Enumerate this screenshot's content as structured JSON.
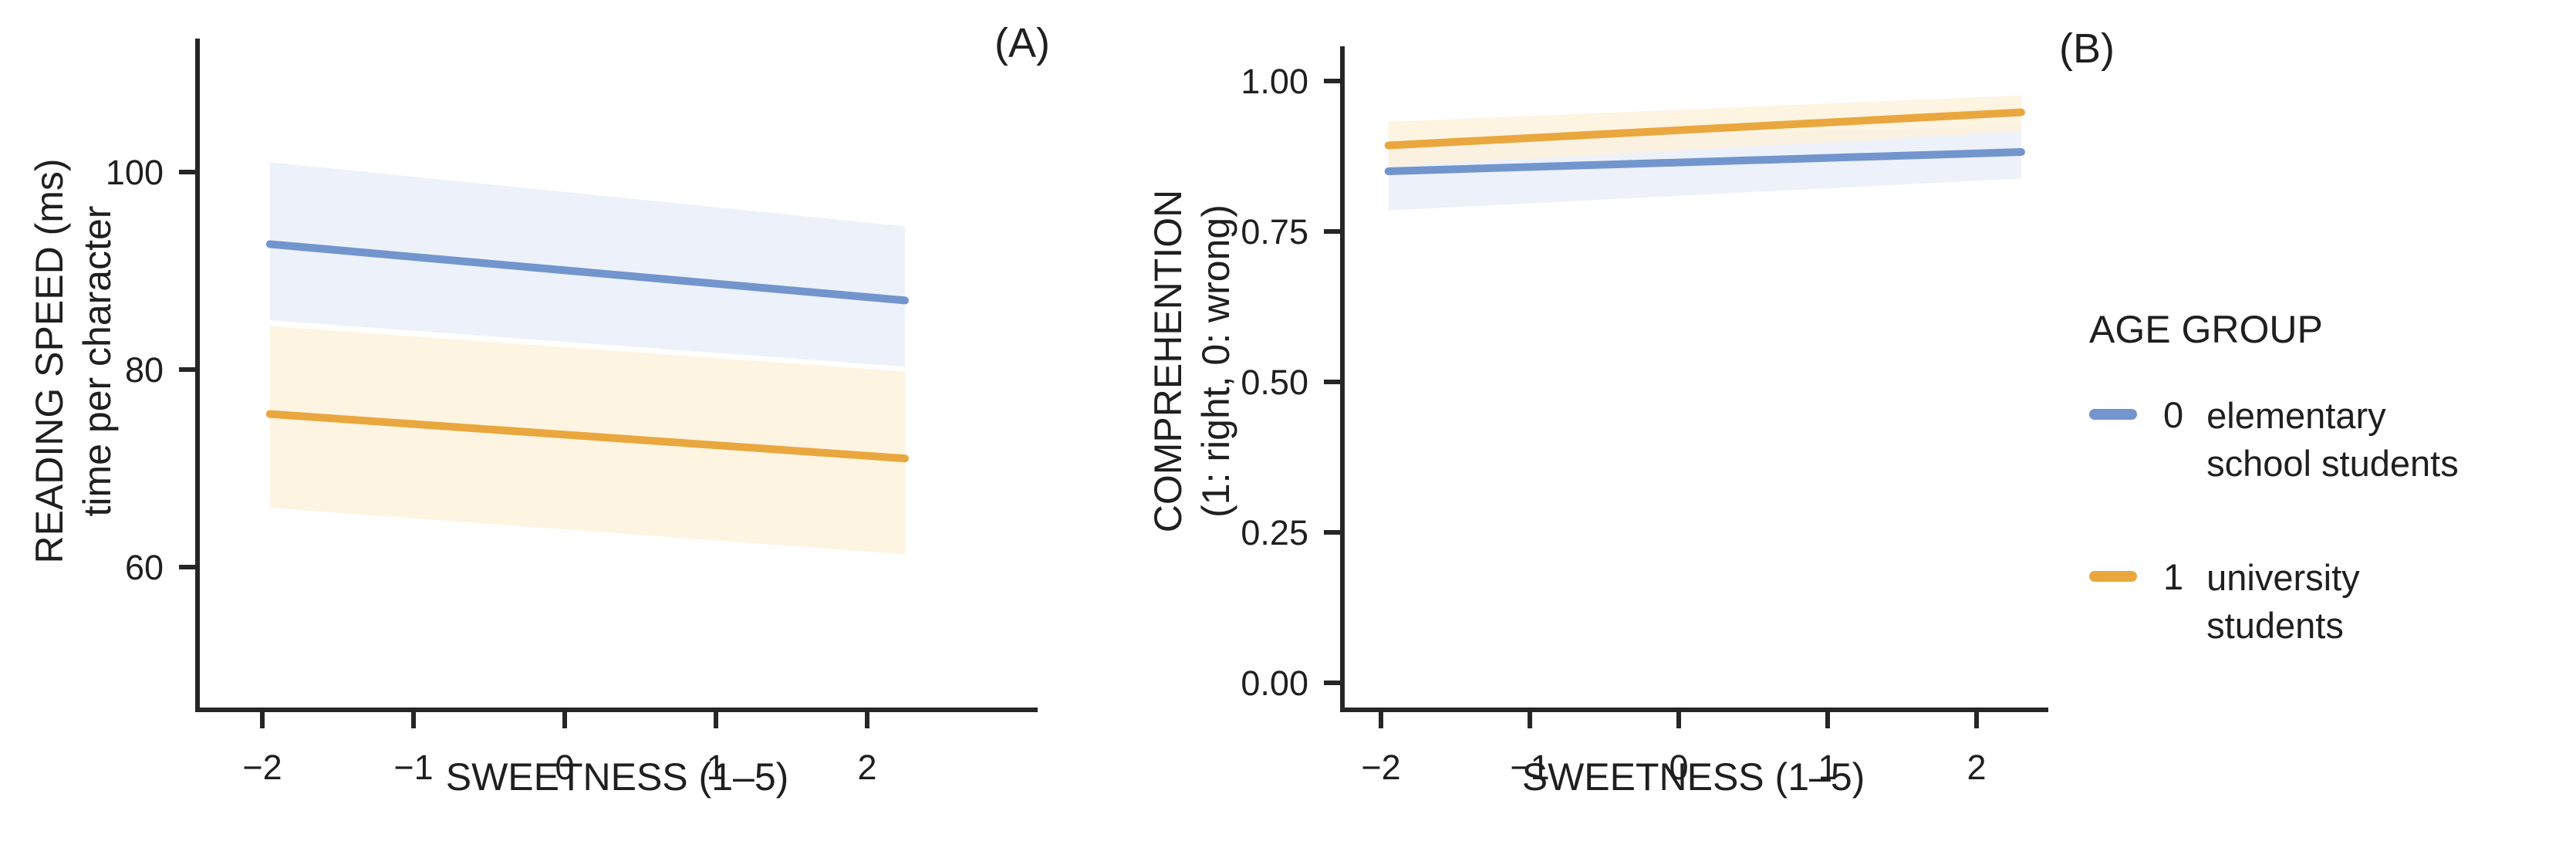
{
  "figure": {
    "background": "#FFFFFF",
    "text_color": "#1F1F1F",
    "axis_color": "#262626"
  },
  "chart_data": [
    {
      "type": "line",
      "panel_label": "(A)",
      "xlabel": "SWEETNESS (1–5)",
      "ylabel_line1": "READING SPEED (ms)",
      "ylabel_line2": "time per character",
      "x_tick_values": [
        -2,
        -1,
        0,
        1,
        2
      ],
      "x_tick_labels": [
        "−2",
        "−1",
        "0",
        "1",
        "2"
      ],
      "y_tick_values": [
        100,
        80,
        60
      ],
      "y_tick_labels": [
        "100",
        "80",
        "60"
      ],
      "xlim": [
        -2.43,
        3.13
      ],
      "ylim": [
        45.6,
        113.5
      ],
      "grid": false,
      "legend_position": "right-outside",
      "series": [
        {
          "id": "elementary",
          "name": "0 elementary school students",
          "color": "#7295CD",
          "ribbon_color": "#E9EDF8",
          "x": [
            -1.95,
            2.25
          ],
          "y": [
            92.7,
            87.0
          ],
          "ribbon_upper": [
            101.0,
            94.5
          ],
          "ribbon_lower": [
            85.0,
            80.3
          ]
        },
        {
          "id": "university",
          "name": "1 university students",
          "color": "#E9A73E",
          "ribbon_color": "#FCF1DB",
          "x": [
            -1.95,
            2.25
          ],
          "y": [
            75.5,
            71.0
          ],
          "ribbon_upper": [
            84.4,
            79.8
          ],
          "ribbon_lower": [
            66.0,
            61.3
          ]
        }
      ]
    },
    {
      "type": "line",
      "panel_label": "(B)",
      "xlabel": "SWEETNESS (1–5)",
      "ylabel_line1": "COMPREHENTION",
      "ylabel_line2": "(1: right, 0: wrong)",
      "x_tick_values": [
        -2,
        -1,
        0,
        1,
        2
      ],
      "x_tick_labels": [
        "−2",
        "−1",
        "0",
        "1",
        "2"
      ],
      "y_tick_values": [
        1.0,
        0.75,
        0.5,
        0.25,
        0.0
      ],
      "y_tick_labels": [
        "1.00",
        "0.75",
        "0.50",
        "0.25",
        "0.00"
      ],
      "xlim": [
        -2.26,
        2.48
      ],
      "ylim": [
        -0.045,
        1.058
      ],
      "grid": false,
      "legend_position": "right-outside",
      "series": [
        {
          "id": "elementary",
          "name": "0 elementary school students",
          "color": "#7295CD",
          "ribbon_color": "#E9EDF8",
          "x": [
            -1.95,
            2.3
          ],
          "y": [
            0.85,
            0.882
          ],
          "ribbon_upper": [
            0.9,
            0.925
          ],
          "ribbon_lower": [
            0.785,
            0.838
          ]
        },
        {
          "id": "university",
          "name": "1 university students",
          "color": "#E9A73E",
          "ribbon_color": "#FCF1DB",
          "x": [
            -1.95,
            2.3
          ],
          "y": [
            0.893,
            0.948
          ],
          "ribbon_upper": [
            0.932,
            0.976
          ],
          "ribbon_lower": [
            0.858,
            0.916
          ]
        }
      ]
    }
  ],
  "legend": {
    "title": "AGE GROUP",
    "items": [
      {
        "key": "0",
        "line1": "elementary",
        "line2": "school students",
        "color": "#7295CD"
      },
      {
        "key": "1",
        "line1": "university",
        "line2": "students",
        "color": "#E9A73E"
      }
    ]
  }
}
